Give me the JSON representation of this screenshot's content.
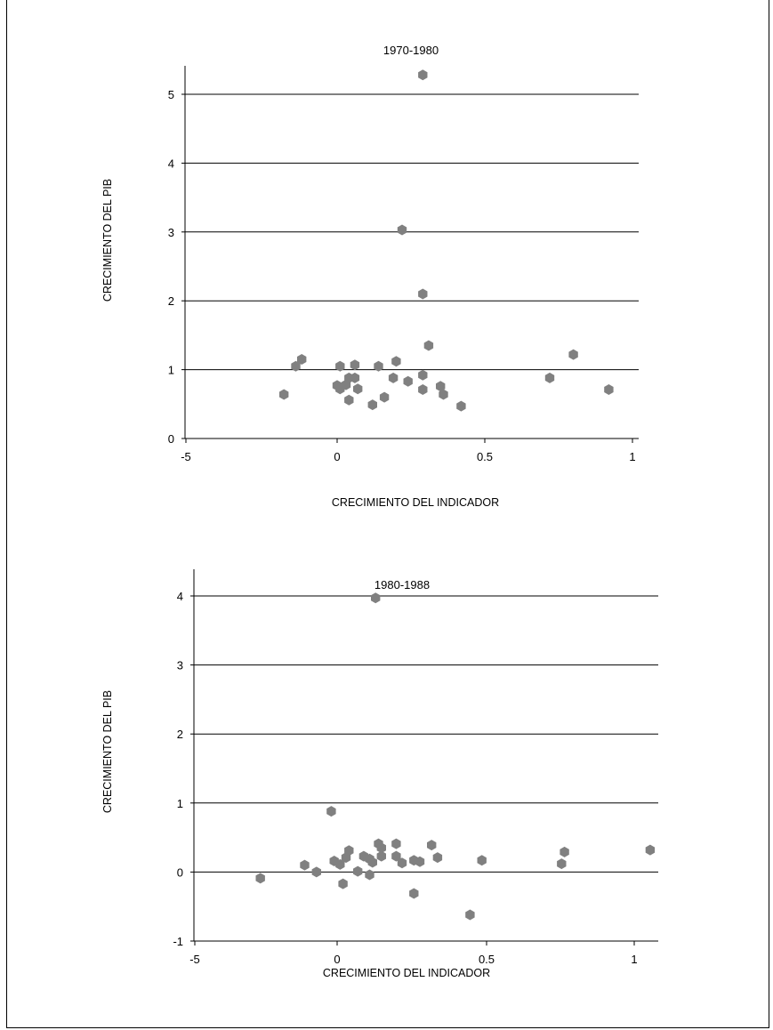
{
  "chart_data": [
    {
      "type": "scatter",
      "title": "1970-1980",
      "xlabel": "CRECIMIENTO DEL  INDICADOR",
      "ylabel": "CRECIMIENTO DEL  PIB",
      "x_tick_labels": [
        "-5",
        "0",
        "0.5",
        "1"
      ],
      "y_tick_labels": [
        "0",
        "1",
        "2",
        "3",
        "4",
        "5"
      ],
      "xlim": [
        -0.5,
        1.0
      ],
      "ylim": [
        0,
        5
      ],
      "grid": "horizontal",
      "marker_color": "#808080",
      "points": [
        {
          "x": 0.29,
          "y": 5.28
        },
        {
          "x": 0.22,
          "y": 3.03
        },
        {
          "x": 0.29,
          "y": 2.1
        },
        {
          "x": 0.31,
          "y": 1.35
        },
        {
          "x": 0.8,
          "y": 1.22
        },
        {
          "x": -0.12,
          "y": 1.15
        },
        {
          "x": -0.14,
          "y": 1.05
        },
        {
          "x": 0.01,
          "y": 1.05
        },
        {
          "x": 0.06,
          "y": 1.07
        },
        {
          "x": 0.14,
          "y": 1.05
        },
        {
          "x": 0.2,
          "y": 1.12
        },
        {
          "x": 0.29,
          "y": 0.92
        },
        {
          "x": 0.72,
          "y": 0.88
        },
        {
          "x": -0.18,
          "y": 0.64
        },
        {
          "x": 0.0,
          "y": 0.77
        },
        {
          "x": 0.01,
          "y": 0.72
        },
        {
          "x": 0.03,
          "y": 0.78
        },
        {
          "x": 0.04,
          "y": 0.88
        },
        {
          "x": 0.06,
          "y": 0.88
        },
        {
          "x": 0.07,
          "y": 0.72
        },
        {
          "x": 0.04,
          "y": 0.56
        },
        {
          "x": 0.12,
          "y": 0.49
        },
        {
          "x": 0.16,
          "y": 0.6
        },
        {
          "x": 0.19,
          "y": 0.88
        },
        {
          "x": 0.24,
          "y": 0.83
        },
        {
          "x": 0.29,
          "y": 0.71
        },
        {
          "x": 0.35,
          "y": 0.76
        },
        {
          "x": 0.36,
          "y": 0.64
        },
        {
          "x": 0.42,
          "y": 0.47
        },
        {
          "x": 0.92,
          "y": 0.71
        }
      ]
    },
    {
      "type": "scatter",
      "title": "1980-1988",
      "xlabel": "CRECIMIENTO DEL  INDICADOR",
      "ylabel": "CRECIMIENTO DEL  PIB",
      "x_tick_labels": [
        "-5",
        "0",
        "0.5",
        "1"
      ],
      "y_tick_labels": [
        "-1",
        "0",
        "1",
        "2",
        "3",
        "4"
      ],
      "xlim": [
        -0.5,
        1.08
      ],
      "ylim": [
        -1,
        4
      ],
      "grid": "horizontal",
      "marker_color": "#808080",
      "points": [
        {
          "x": 0.13,
          "y": 3.97
        },
        {
          "x": -0.02,
          "y": 0.88
        },
        {
          "x": -0.26,
          "y": -0.09
        },
        {
          "x": -0.11,
          "y": 0.1
        },
        {
          "x": -0.07,
          "y": 0.0
        },
        {
          "x": -0.01,
          "y": 0.16
        },
        {
          "x": 0.01,
          "y": 0.11
        },
        {
          "x": 0.03,
          "y": 0.21
        },
        {
          "x": 0.04,
          "y": 0.31
        },
        {
          "x": 0.02,
          "y": -0.17
        },
        {
          "x": 0.07,
          "y": 0.01
        },
        {
          "x": 0.09,
          "y": 0.23
        },
        {
          "x": 0.11,
          "y": 0.19
        },
        {
          "x": 0.12,
          "y": 0.14
        },
        {
          "x": 0.11,
          "y": -0.04
        },
        {
          "x": 0.14,
          "y": 0.41
        },
        {
          "x": 0.15,
          "y": 0.35
        },
        {
          "x": 0.15,
          "y": 0.23
        },
        {
          "x": 0.2,
          "y": 0.41
        },
        {
          "x": 0.2,
          "y": 0.23
        },
        {
          "x": 0.22,
          "y": 0.13
        },
        {
          "x": 0.26,
          "y": 0.17
        },
        {
          "x": 0.28,
          "y": 0.15
        },
        {
          "x": 0.26,
          "y": -0.31
        },
        {
          "x": 0.32,
          "y": 0.39
        },
        {
          "x": 0.34,
          "y": 0.21
        },
        {
          "x": 0.45,
          "y": -0.62
        },
        {
          "x": 0.49,
          "y": 0.17
        },
        {
          "x": 0.76,
          "y": 0.12
        },
        {
          "x": 0.77,
          "y": 0.29
        },
        {
          "x": 1.06,
          "y": 0.32
        }
      ]
    }
  ]
}
